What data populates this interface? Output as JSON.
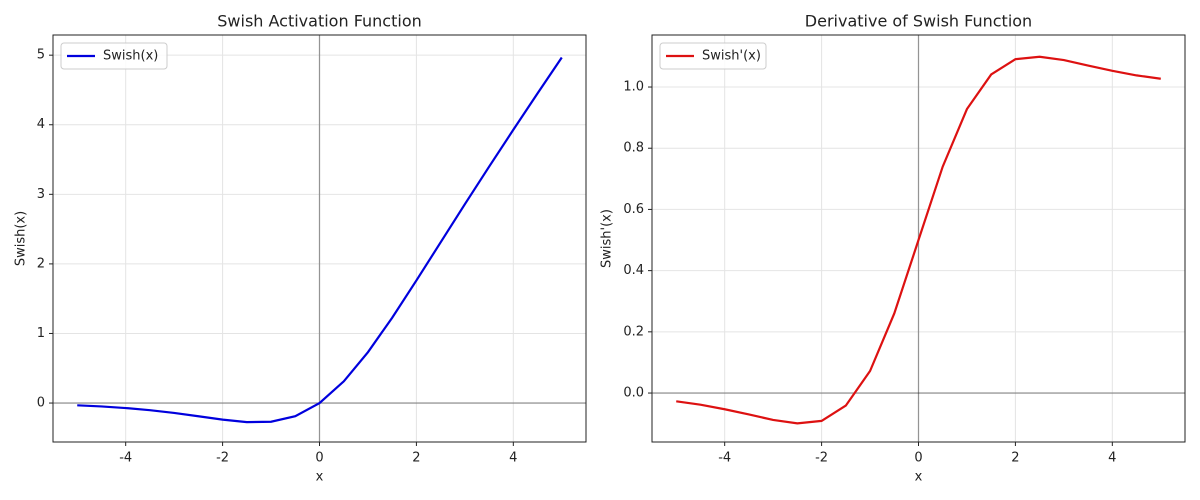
{
  "chart_data": [
    {
      "type": "line",
      "title": "Swish Activation Function",
      "xlabel": "x",
      "ylabel": "Swish(x)",
      "x": [
        -5,
        -4.5,
        -4,
        -3.5,
        -3,
        -2.5,
        -2,
        -1.5,
        -1,
        -0.5,
        0,
        0.5,
        1,
        1.5,
        2,
        2.5,
        3,
        3.5,
        4,
        4.5,
        5
      ],
      "series": [
        {
          "name": "Swish(x)",
          "color": "#0000dd",
          "values": [
            -0.033,
            -0.049,
            -0.072,
            -0.103,
            -0.142,
            -0.19,
            -0.238,
            -0.274,
            -0.269,
            -0.189,
            0,
            0.311,
            0.731,
            1.226,
            1.762,
            2.31,
            2.858,
            3.397,
            3.928,
            4.451,
            4.967
          ]
        }
      ],
      "xlim": [
        -5.5,
        5.5
      ],
      "ylim": [
        -0.56,
        5.29
      ],
      "xticks": [
        -4,
        -2,
        0,
        2,
        4
      ],
      "yticks": [
        0,
        1,
        2,
        3,
        4,
        5
      ],
      "grid": true,
      "legend": "upper left"
    },
    {
      "type": "line",
      "title": "Derivative of Swish Function",
      "xlabel": "x",
      "ylabel": "Swish'(x)",
      "x": [
        -5,
        -4.5,
        -4,
        -3.5,
        -3,
        -2.5,
        -2,
        -1.5,
        -1,
        -0.5,
        0,
        0.5,
        1,
        1.5,
        2,
        2.5,
        3,
        3.5,
        4,
        4.5,
        5
      ],
      "series": [
        {
          "name": "Swish'(x)",
          "color": "#dd1111",
          "values": [
            -0.027,
            -0.038,
            -0.053,
            -0.07,
            -0.088,
            -0.099,
            -0.091,
            -0.041,
            0.072,
            0.26,
            0.5,
            0.74,
            0.928,
            1.041,
            1.091,
            1.099,
            1.088,
            1.07,
            1.053,
            1.038,
            1.027
          ]
        }
      ],
      "xlim": [
        -5.5,
        5.5
      ],
      "ylim": [
        -0.16,
        1.17
      ],
      "xticks": [
        -4,
        -2,
        0,
        2,
        4
      ],
      "yticks": [
        {
          "value": 0,
          "label": "0.0"
        },
        0.2,
        0.4,
        0.6,
        0.8,
        {
          "value": 1,
          "label": "1.0"
        }
      ],
      "grid": true,
      "legend": "upper left"
    }
  ]
}
